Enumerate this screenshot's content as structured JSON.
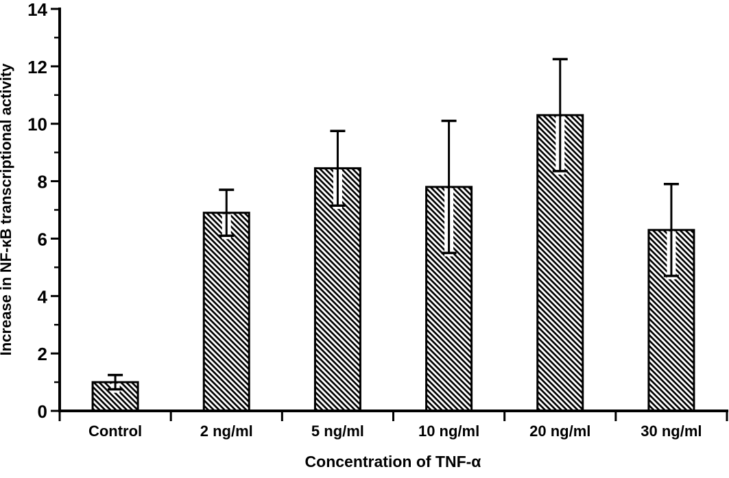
{
  "chart_data": {
    "type": "bar",
    "title": "",
    "xlabel": "Concentration of TNF-α",
    "ylabel": "Increase in NF-κB transcriptional activity",
    "categories": [
      "Control",
      "2 ng/ml",
      "5 ng/ml",
      "10 ng/ml",
      "20 ng/ml",
      "30 ng/ml"
    ],
    "values": [
      1.0,
      6.9,
      8.45,
      7.8,
      10.3,
      6.3
    ],
    "errors": [
      0.25,
      0.8,
      1.3,
      2.3,
      1.95,
      1.6
    ],
    "error_bar_style": "symmetric-caps",
    "ylim": [
      0,
      14
    ],
    "yticks": [
      0,
      2,
      4,
      6,
      8,
      10,
      12,
      14
    ],
    "minor_ytick_interval": 1,
    "grid": false,
    "legend": "none",
    "bar_fill_pattern": "diagonal-hatch",
    "bar_edge_color": "#000000",
    "hatch_color": "#000000",
    "background_color": "#ffffff",
    "axis_color": "#000000"
  }
}
